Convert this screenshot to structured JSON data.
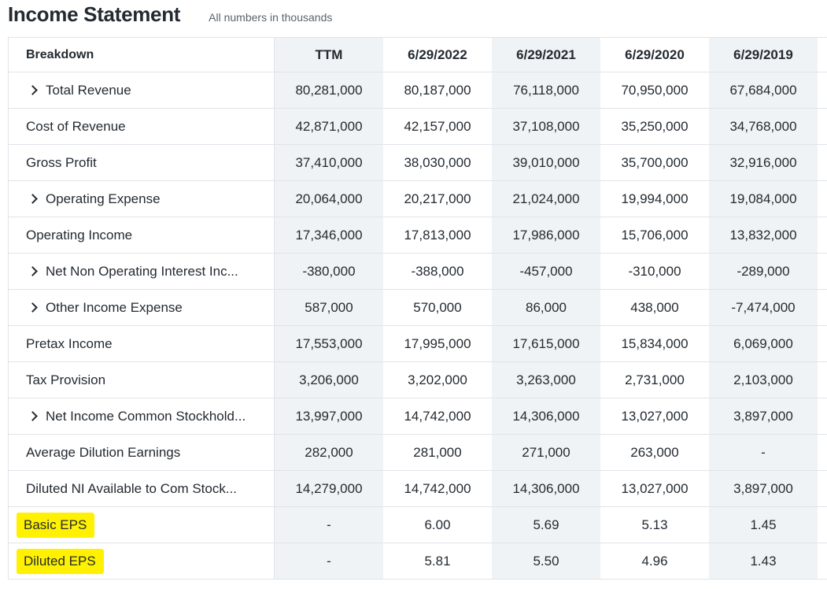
{
  "header": {
    "title": "Income Statement",
    "subtitle": "All numbers in thousands"
  },
  "columns": [
    "Breakdown",
    "TTM",
    "6/29/2022",
    "6/29/2021",
    "6/29/2020",
    "6/29/2019"
  ],
  "rows": [
    {
      "label": "Total Revenue",
      "expandable": true,
      "values": [
        "80,281,000",
        "80,187,000",
        "76,118,000",
        "70,950,000",
        "67,684,000"
      ]
    },
    {
      "label": "Cost of Revenue",
      "expandable": false,
      "values": [
        "42,871,000",
        "42,157,000",
        "37,108,000",
        "35,250,000",
        "34,768,000"
      ]
    },
    {
      "label": "Gross Profit",
      "expandable": false,
      "values": [
        "37,410,000",
        "38,030,000",
        "39,010,000",
        "35,700,000",
        "32,916,000"
      ]
    },
    {
      "label": "Operating Expense",
      "expandable": true,
      "values": [
        "20,064,000",
        "20,217,000",
        "21,024,000",
        "19,994,000",
        "19,084,000"
      ]
    },
    {
      "label": "Operating Income",
      "expandable": false,
      "values": [
        "17,346,000",
        "17,813,000",
        "17,986,000",
        "15,706,000",
        "13,832,000"
      ]
    },
    {
      "label": "Net Non Operating Interest Inc...",
      "expandable": true,
      "values": [
        "-380,000",
        "-388,000",
        "-457,000",
        "-310,000",
        "-289,000"
      ]
    },
    {
      "label": "Other Income Expense",
      "expandable": true,
      "values": [
        "587,000",
        "570,000",
        "86,000",
        "438,000",
        "-7,474,000"
      ]
    },
    {
      "label": "Pretax Income",
      "expandable": false,
      "values": [
        "17,553,000",
        "17,995,000",
        "17,615,000",
        "15,834,000",
        "6,069,000"
      ]
    },
    {
      "label": "Tax Provision",
      "expandable": false,
      "values": [
        "3,206,000",
        "3,202,000",
        "3,263,000",
        "2,731,000",
        "2,103,000"
      ]
    },
    {
      "label": "Net Income Common Stockhold...",
      "expandable": true,
      "values": [
        "13,997,000",
        "14,742,000",
        "14,306,000",
        "13,027,000",
        "3,897,000"
      ]
    },
    {
      "label": "Average Dilution Earnings",
      "expandable": false,
      "values": [
        "282,000",
        "281,000",
        "271,000",
        "263,000",
        "-"
      ]
    },
    {
      "label": "Diluted NI Available to Com Stock...",
      "expandable": false,
      "values": [
        "14,279,000",
        "14,742,000",
        "14,306,000",
        "13,027,000",
        "3,897,000"
      ]
    },
    {
      "label": "Basic EPS",
      "expandable": false,
      "highlight": true,
      "values": [
        "-",
        "6.00",
        "5.69",
        "5.13",
        "1.45"
      ]
    },
    {
      "label": "Diluted EPS",
      "expandable": false,
      "highlight": true,
      "values": [
        "-",
        "5.81",
        "5.50",
        "4.96",
        "1.43"
      ]
    }
  ],
  "colors": {
    "highlight": "#fff100",
    "shaded_column": "#f0f3f5",
    "border": "#e0e4e9",
    "text": "#232a31"
  }
}
